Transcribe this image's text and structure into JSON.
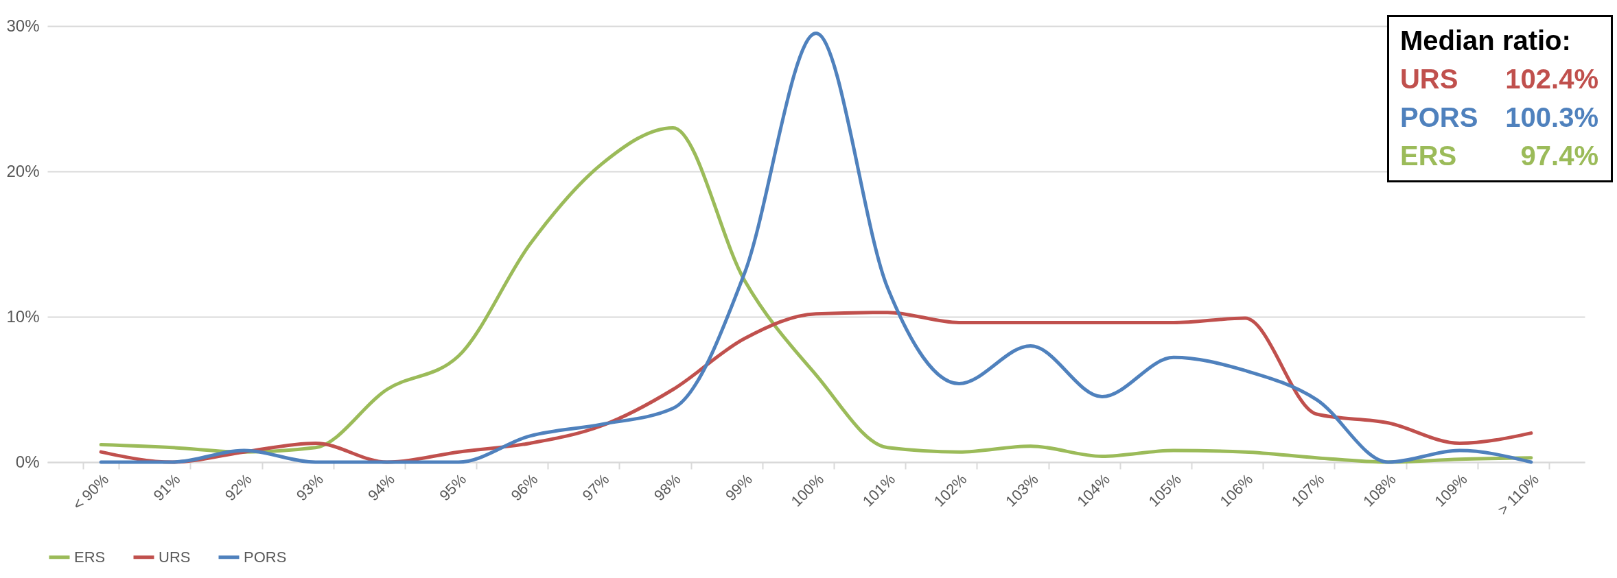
{
  "chart_data": {
    "type": "line",
    "categories": [
      "< 90%",
      "91%",
      "92%",
      "93%",
      "94%",
      "95%",
      "96%",
      "97%",
      "98%",
      "99%",
      "100%",
      "101%",
      "102%",
      "103%",
      "104%",
      "105%",
      "106%",
      "107%",
      "108%",
      "109%",
      "> 110%"
    ],
    "series": [
      {
        "name": "ERS",
        "color": "#9bbb59",
        "values": [
          1.2,
          1.0,
          0.7,
          1.0,
          5.0,
          7.3,
          15.0,
          20.5,
          23.0,
          12.5,
          6.0,
          1.0,
          0.7,
          1.1,
          0.4,
          0.8,
          0.7,
          0.3,
          0.0,
          0.2,
          0.3
        ]
      },
      {
        "name": "URS",
        "color": "#c0504d",
        "values": [
          0.7,
          0.0,
          0.7,
          1.3,
          0.0,
          0.7,
          1.3,
          2.5,
          5.0,
          8.5,
          10.2,
          10.3,
          9.6,
          9.6,
          9.6,
          9.6,
          9.9,
          3.3,
          2.7,
          1.3,
          2.0
        ]
      },
      {
        "name": "PORS",
        "color": "#4f81bd",
        "values": [
          0.0,
          0.0,
          0.8,
          0.0,
          0.0,
          0.0,
          1.8,
          2.6,
          3.7,
          13.0,
          29.5,
          12.0,
          5.4,
          8.0,
          4.5,
          7.2,
          6.3,
          4.3,
          0.0,
          0.8,
          0.0
        ]
      }
    ],
    "ylim": [
      0,
      30
    ],
    "yticks": [
      {
        "value": 0,
        "label": "0%"
      },
      {
        "value": 10,
        "label": "10%"
      },
      {
        "value": 20,
        "label": "20%"
      },
      {
        "value": 30,
        "label": "30%"
      }
    ],
    "grid": "y",
    "legend": "bottom",
    "marker": "none",
    "line_style": "solid",
    "annotations": [
      "Median ratio:",
      "URS 102.4%",
      "PORS 100.3%",
      "ERS 97.4%"
    ]
  }
}
